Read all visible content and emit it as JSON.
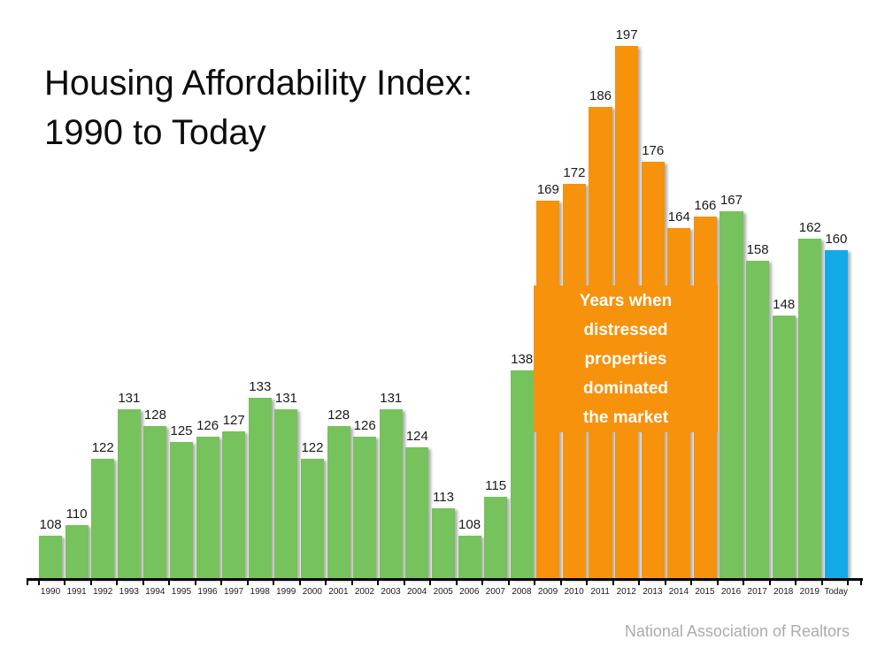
{
  "header": {
    "title_line1": "Housing Affordability Index:",
    "title_line2": "1990 to Today"
  },
  "footer": {
    "source": "National Association of Realtors"
  },
  "chart_data": {
    "type": "bar",
    "title": "Housing Affordability Index: 1990 to Today",
    "categories": [
      "1990",
      "1991",
      "1992",
      "1993",
      "1994",
      "1995",
      "1996",
      "1997",
      "1998",
      "1999",
      "2000",
      "2001",
      "2002",
      "2003",
      "2004",
      "2005",
      "2006",
      "2007",
      "2008",
      "2009",
      "2010",
      "2011",
      "2012",
      "2013",
      "2014",
      "2015",
      "2016",
      "2017",
      "2018",
      "2019",
      "Today"
    ],
    "values": [
      108,
      110,
      122,
      131,
      128,
      125,
      126,
      127,
      133,
      131,
      122,
      128,
      126,
      131,
      124,
      113,
      108,
      115,
      138,
      169,
      172,
      186,
      197,
      176,
      164,
      166,
      167,
      158,
      148,
      162,
      160
    ],
    "bar_groups": [
      "green",
      "green",
      "green",
      "green",
      "green",
      "green",
      "green",
      "green",
      "green",
      "green",
      "green",
      "green",
      "green",
      "green",
      "green",
      "green",
      "green",
      "green",
      "green",
      "orange",
      "orange",
      "orange",
      "orange",
      "orange",
      "orange",
      "orange",
      "green",
      "green",
      "green",
      "green",
      "blue"
    ],
    "colors": {
      "green": "#76C25C",
      "orange": "#F6920B",
      "blue": "#14AAE8",
      "axis": "#000000",
      "value_label": "#1a1a1a",
      "annotation_bg": "#F6920B",
      "annotation_text": "#ffffff",
      "source_text": "#ababab"
    },
    "annotation": {
      "lines": [
        "Years when",
        "distressed",
        "properties",
        "dominated",
        "the market"
      ]
    },
    "value_labels": true,
    "grid": false,
    "legend": "none",
    "source": "National Association of Realtors"
  }
}
